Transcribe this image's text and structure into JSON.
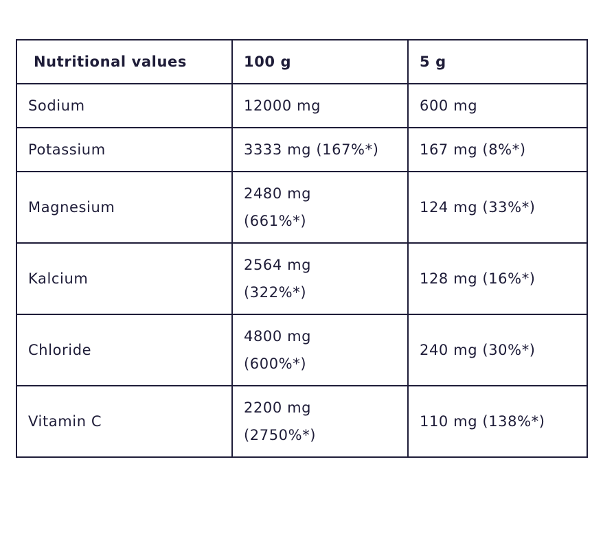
{
  "table": {
    "header": [
      "Nutritional values",
      "100 g",
      "5 g"
    ],
    "rows": [
      [
        "Sodium",
        "12000 mg",
        "600 mg"
      ],
      [
        "Potassium",
        "3333 mg (167%*)",
        "167 mg (8%*)"
      ],
      [
        "Magnesium",
        [
          "2480 mg",
          "(661%*)"
        ],
        "124 mg (33%*)"
      ],
      [
        "Kalcium",
        [
          "2564 mg",
          "(322%*)"
        ],
        "128 mg (16%*)"
      ],
      [
        "Chloride",
        [
          "4800 mg",
          "(600%*)"
        ],
        "240 mg (30%*)"
      ],
      [
        "Vitamin C",
        [
          "2200 mg",
          "(2750%*)"
        ],
        "110 mg (138%*)"
      ]
    ]
  }
}
